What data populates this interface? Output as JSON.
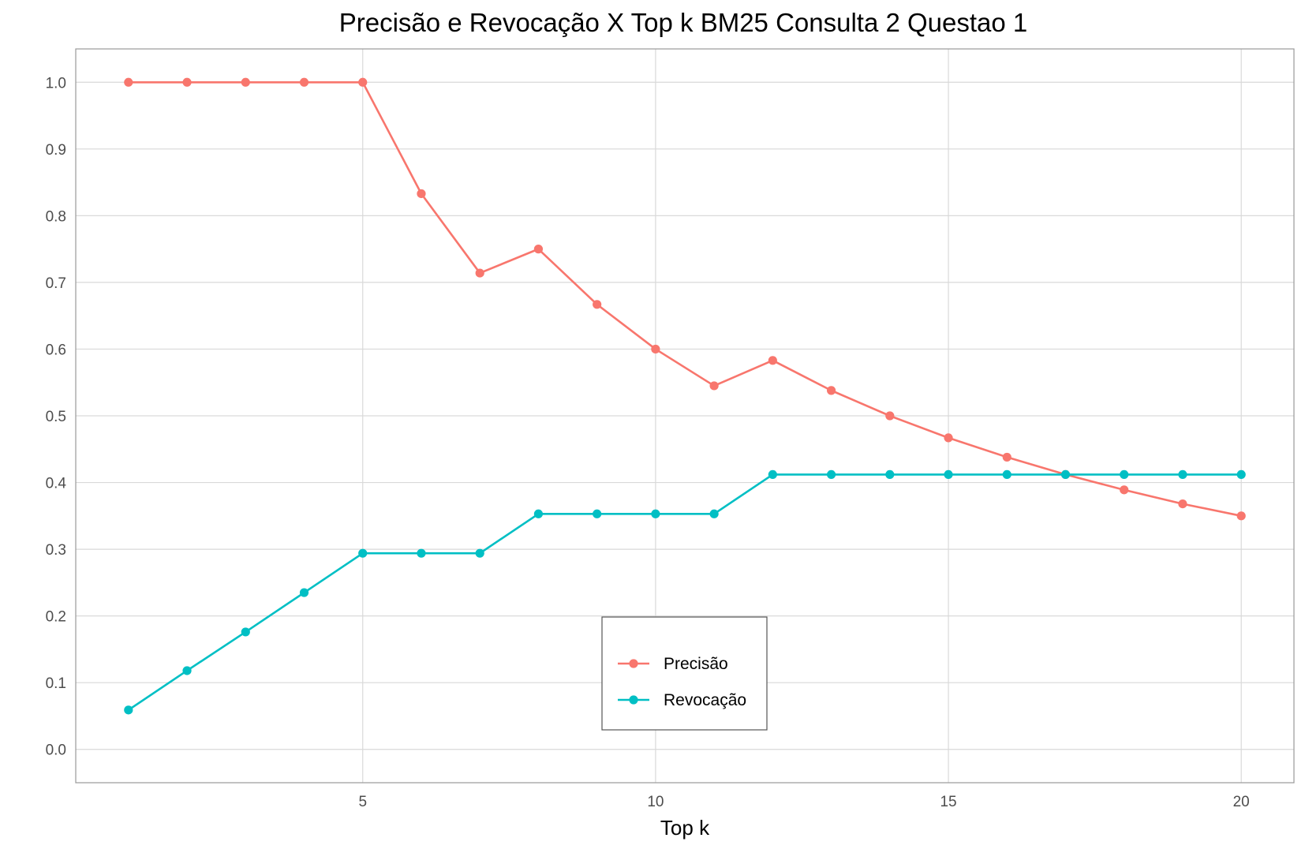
{
  "chart_data": {
    "type": "line",
    "title": "Precisão e Revocação X Top k BM25 Consulta 2 Questao 1",
    "xlabel": "Top k",
    "ylabel": "",
    "xlim": [
      0.1,
      20.9
    ],
    "ylim": [
      -0.05,
      1.05
    ],
    "x_ticks": [
      5,
      10,
      15,
      20
    ],
    "y_ticks": [
      0.0,
      0.1,
      0.2,
      0.3,
      0.4,
      0.5,
      0.6,
      0.7,
      0.8,
      0.9,
      1.0
    ],
    "x_tick_labels": [
      "5",
      "10",
      "15",
      "20"
    ],
    "y_tick_labels": [
      "0.0",
      "0.1",
      "0.2",
      "0.3",
      "0.4",
      "0.5",
      "0.6",
      "0.7",
      "0.8",
      "0.9",
      "1.0"
    ],
    "grid": true,
    "legend_position": "bottom-center",
    "x": [
      1,
      2,
      3,
      4,
      5,
      6,
      7,
      8,
      9,
      10,
      11,
      12,
      13,
      14,
      15,
      16,
      17,
      18,
      19,
      20
    ],
    "series": [
      {
        "name": "Precisão",
        "color": "#F8766D",
        "values": [
          1.0,
          1.0,
          1.0,
          1.0,
          1.0,
          0.833,
          0.714,
          0.75,
          0.667,
          0.6,
          0.545,
          0.583,
          0.538,
          0.5,
          0.467,
          0.438,
          0.412,
          0.389,
          0.368,
          0.35
        ]
      },
      {
        "name": "Revocação",
        "color": "#00BFC4",
        "values": [
          0.059,
          0.118,
          0.176,
          0.235,
          0.294,
          0.294,
          0.294,
          0.353,
          0.353,
          0.353,
          0.353,
          0.412,
          0.412,
          0.412,
          0.412,
          0.412,
          0.412,
          0.412,
          0.412,
          0.412
        ]
      }
    ]
  }
}
